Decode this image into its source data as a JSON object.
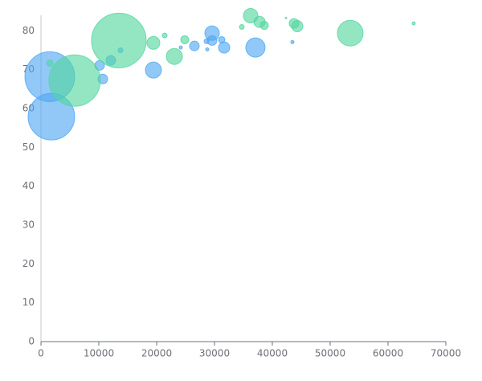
{
  "chart_data": {
    "type": "bubble",
    "xlim": [
      0,
      70000
    ],
    "xticks": [
      0,
      10000,
      20000,
      30000,
      40000,
      50000,
      60000,
      70000
    ],
    "ylim": [
      0,
      84
    ],
    "yticks": [
      0,
      10,
      20,
      30,
      40,
      50,
      60,
      70,
      80
    ],
    "grid": false,
    "series": [
      {
        "color": "#4fa6f2",
        "x": [
          1530,
          1800,
          10140,
          10690,
          12080,
          13750,
          19440,
          26530,
          28610,
          28750,
          29580,
          29580,
          31250,
          31670,
          37080,
          43470,
          24170
        ],
        "values": [
          68.2,
          57.9,
          71.1,
          67.6,
          72.4,
          75.0,
          69.9,
          76.1,
          77.3,
          75.2,
          79.4,
          77.5,
          77.7,
          75.7,
          75.7,
          77.1,
          75.7
        ],
        "sizes": [
          961,
          841,
          36,
          36,
          36,
          9,
          100,
          36,
          9,
          4,
          81,
          36,
          16,
          49,
          144,
          4,
          4
        ]
      },
      {
        "color": "#52d69e",
        "x": [
          13470,
          5830,
          1530,
          19440,
          21390,
          23060,
          24860,
          34720,
          36250,
          37780,
          38610,
          43750,
          44310,
          53470,
          64440,
          42360
        ],
        "values": [
          77.5,
          67.2,
          71.7,
          76.9,
          78.8,
          73.4,
          77.7,
          81.0,
          83.9,
          82.3,
          81.4,
          81.9,
          81.2,
          79.4,
          81.9,
          83.3
        ],
        "sizes": [
          1156,
          1024,
          16,
          64,
          9,
          100,
          25,
          9,
          81,
          49,
          25,
          36,
          49,
          256,
          4,
          1
        ]
      }
    ]
  }
}
